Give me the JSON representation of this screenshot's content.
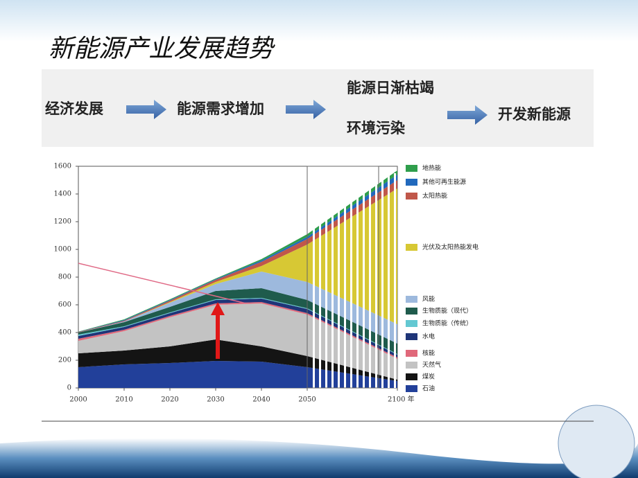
{
  "title": "新能源产业发展趋势",
  "flow": {
    "steps": [
      "经济发展",
      "能源需求增加"
    ],
    "causes": [
      "能源日渐枯竭",
      "环境污染"
    ],
    "result": "开发新能源"
  },
  "chart_data": {
    "type": "stacked-area",
    "x": [
      2000,
      2010,
      2020,
      2030,
      2040,
      2050,
      2100
    ],
    "xlim": [
      2000,
      2100
    ],
    "xticks": [
      2000,
      2010,
      2020,
      2030,
      2040,
      2050,
      {
        "value": 2100,
        "label": "2100 年"
      }
    ],
    "ylim": [
      0,
      1600
    ],
    "yticks": [
      0,
      200,
      400,
      600,
      800,
      1000,
      1200,
      1400,
      1600
    ],
    "series": [
      {
        "name": "石油",
        "color": "#22409a",
        "values": [
          150,
          170,
          180,
          195,
          190,
          150,
          50
        ]
      },
      {
        "name": "煤炭",
        "color": "#141414",
        "values": [
          100,
          100,
          120,
          155,
          110,
          80,
          10
        ]
      },
      {
        "name": "天然气",
        "color": "#c3c3c3",
        "values": [
          90,
          140,
          210,
          250,
          310,
          300,
          150
        ]
      },
      {
        "name": "核能",
        "color": "#e0687a",
        "values": [
          15,
          10,
          10,
          10,
          10,
          10,
          10
        ]
      },
      {
        "name": "水电",
        "color": "#1f3578",
        "values": [
          20,
          20,
          20,
          25,
          25,
          30,
          20
        ]
      },
      {
        "name": "生物质能（传统）",
        "color": "#63c8d2",
        "values": [
          10,
          5,
          5,
          5,
          5,
          5,
          5
        ]
      },
      {
        "name": "生物质能（现代）",
        "color": "#1f5b4c",
        "values": [
          15,
          30,
          40,
          60,
          70,
          60,
          75
        ]
      },
      {
        "name": "风能",
        "color": "#9db9dd",
        "values": [
          0,
          5,
          30,
          50,
          120,
          130,
          140
        ]
      },
      {
        "name": "光伏及太阳热能发电",
        "color": "#d7c834",
        "values": [
          0,
          0,
          5,
          15,
          40,
          270,
          980
        ]
      },
      {
        "name": "太阳热能",
        "color": "#c0574a",
        "values": [
          3,
          5,
          10,
          15,
          30,
          40,
          60
        ]
      },
      {
        "name": "其他可再生能源",
        "color": "#2169bd",
        "values": [
          2,
          5,
          5,
          5,
          10,
          15,
          40
        ]
      },
      {
        "name": "地热能",
        "color": "#2f9e4c",
        "values": [
          2,
          5,
          5,
          5,
          10,
          20,
          30
        ]
      }
    ]
  }
}
